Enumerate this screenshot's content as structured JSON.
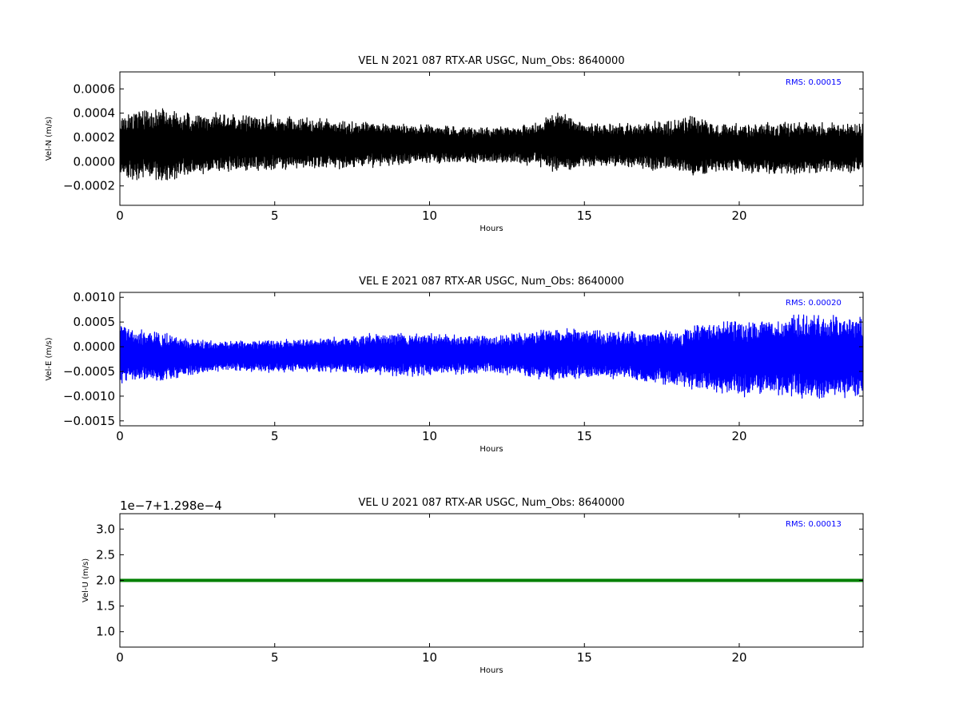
{
  "chart_data": [
    {
      "type": "line",
      "title": "VEL N 2021 087 RTX-AR  USGC, Num_Obs: 8640000",
      "xlabel": "Hours",
      "ylabel": "Vel-N (m/s)",
      "xlim": [
        0,
        24
      ],
      "ylim": [
        -0.00036,
        0.00074
      ],
      "xticks": [
        0,
        5,
        10,
        15,
        20
      ],
      "xtick_labels": [
        "0",
        "5",
        "10",
        "15",
        "20"
      ],
      "yticks": [
        -0.0002,
        0.0,
        0.0002,
        0.0004,
        0.0006
      ],
      "ytick_labels": [
        "−0.0002",
        "0.0000",
        "0.0002",
        "0.0004",
        "0.0006"
      ],
      "offset_label": "",
      "annotation": "RMS:  0.00015",
      "annotation_color": "#0000ff",
      "line_color": "#000000",
      "grid": false,
      "series": [
        {
          "x": [
            0,
            0.5,
            1,
            1.5,
            2,
            3,
            4,
            5,
            6,
            7,
            8,
            9,
            10,
            11,
            12,
            13,
            13.5,
            14,
            14.5,
            15,
            16,
            17,
            18,
            18.5,
            19,
            20,
            21,
            22,
            23,
            24
          ],
          "y_center": [
            0.00012,
            0.00013,
            0.00014,
            0.00014,
            0.00014,
            0.00015,
            0.00015,
            0.00015,
            0.00015,
            0.00014,
            0.00014,
            0.00014,
            0.00015,
            0.00014,
            0.00014,
            0.00014,
            0.00015,
            0.00016,
            0.00015,
            0.00014,
            0.00014,
            0.00013,
            0.00013,
            0.00013,
            0.00012,
            0.00012,
            0.00011,
            0.00011,
            0.00011,
            0.00012
          ],
          "y_half_range": [
            0.00029,
            0.00033,
            0.00031,
            0.00036,
            0.0003,
            0.00028,
            0.00027,
            0.00025,
            0.00024,
            0.00023,
            0.00021,
            0.00019,
            0.00018,
            0.00017,
            0.00017,
            0.00018,
            0.00019,
            0.0003,
            0.00026,
            0.0002,
            0.0002,
            0.00022,
            0.00024,
            0.0003,
            0.00024,
            0.00023,
            0.00025,
            0.00024,
            0.00023,
            0.00024
          ]
        }
      ]
    },
    {
      "type": "line",
      "title": "VEL E 2021 087 RTX-AR  USGC, Num_Obs: 8640000",
      "xlabel": "Hours",
      "ylabel": "Vel-E (m/s)",
      "xlim": [
        0,
        24
      ],
      "ylim": [
        -0.0016,
        0.0011
      ],
      "xticks": [
        0,
        5,
        10,
        15,
        20
      ],
      "xtick_labels": [
        "0",
        "5",
        "10",
        "15",
        "20"
      ],
      "yticks": [
        -0.0015,
        -0.001,
        -0.0005,
        0.0,
        0.0005,
        0.001
      ],
      "ytick_labels": [
        "−0.0015",
        "−0.0010",
        "−0.0005",
        "0.0000",
        "0.0005",
        "0.0010"
      ],
      "offset_label": "",
      "annotation": "RMS:  0.00020",
      "annotation_color": "#0000ff",
      "line_color": "#0000ff",
      "grid": false,
      "series": [
        {
          "x": [
            0,
            0.5,
            1,
            1.5,
            2,
            3,
            4,
            5,
            6,
            7,
            8,
            9,
            10,
            11,
            12,
            13,
            14,
            15,
            16,
            17,
            18,
            19,
            19.5,
            20,
            21,
            21.5,
            22,
            22.5,
            23,
            24
          ],
          "y_center": [
            -0.0001,
            -0.00018,
            -0.0002,
            -0.0002,
            -0.0002,
            -0.0002,
            -0.00018,
            -0.00018,
            -0.00018,
            -0.00016,
            -0.00015,
            -0.00015,
            -0.00016,
            -0.00016,
            -0.00016,
            -0.00016,
            -0.00015,
            -0.00016,
            -0.00018,
            -0.0002,
            -0.00022,
            -0.0002,
            -0.0002,
            -0.00022,
            -0.0002,
            -0.0002,
            -0.0002,
            -0.0002,
            -0.0002,
            -0.0002
          ],
          "y_half_range": [
            0.00075,
            0.00055,
            0.00055,
            0.00055,
            0.00045,
            0.00035,
            0.00035,
            0.00038,
            0.00038,
            0.0004,
            0.00045,
            0.0005,
            0.00048,
            0.00045,
            0.00042,
            0.0005,
            0.0006,
            0.00055,
            0.00055,
            0.0006,
            0.00065,
            0.0008,
            0.00085,
            0.00085,
            0.00085,
            0.0009,
            0.001,
            0.001,
            0.00095,
            0.0009
          ]
        }
      ]
    },
    {
      "type": "line",
      "title": "VEL U 2021 087 RTX-AR  USGC, Num_Obs: 8640000",
      "xlabel": "Hours",
      "ylabel": "Vel-U (m/s)",
      "xlim": [
        0,
        24
      ],
      "ylim": [
        0.7,
        3.3
      ],
      "xticks": [
        0,
        5,
        10,
        15,
        20
      ],
      "xtick_labels": [
        "0",
        "5",
        "10",
        "15",
        "20"
      ],
      "yticks": [
        1.0,
        1.5,
        2.0,
        2.5,
        3.0
      ],
      "ytick_labels": [
        "1.0",
        "1.5",
        "2.0",
        "2.5",
        "3.0"
      ],
      "offset_label": "1e−7+1.298e−4",
      "annotation": "RMS:  0.00013",
      "annotation_color": "#0000ff",
      "line_color": "#008000",
      "grid": false,
      "series": [
        {
          "x": [
            0,
            24
          ],
          "y": [
            2.0,
            2.0
          ]
        }
      ]
    }
  ]
}
